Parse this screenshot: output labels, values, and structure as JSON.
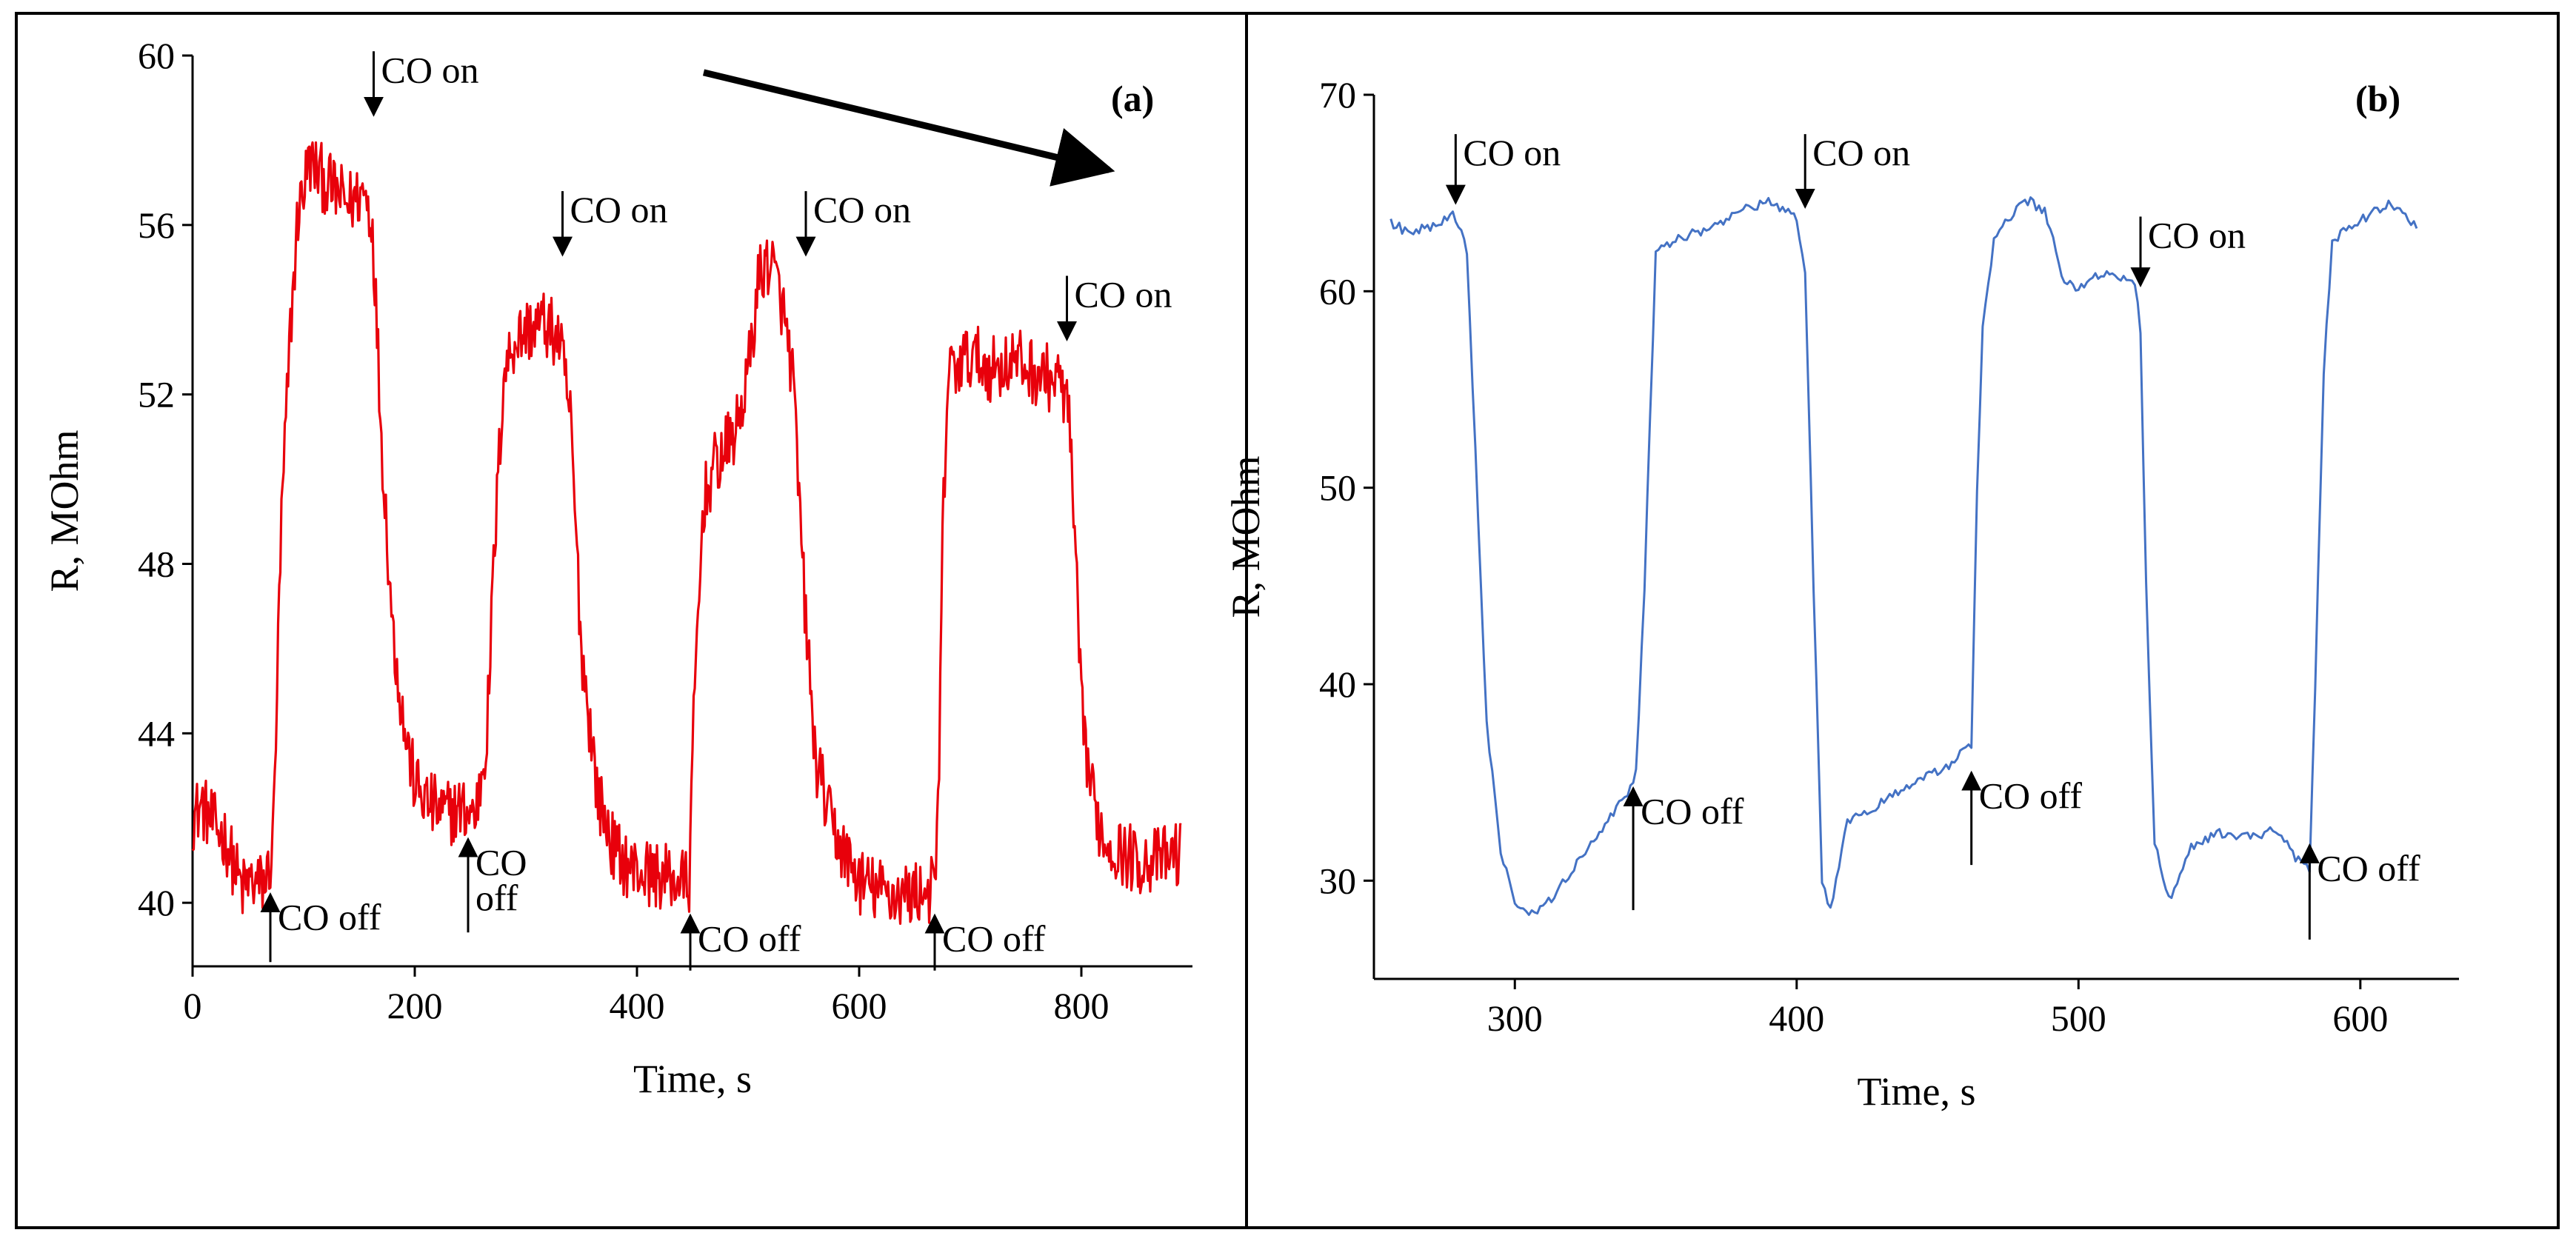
{
  "chart_data": [
    {
      "panel": "(a)",
      "type": "line",
      "xlabel": "Time, s",
      "ylabel": "R, MOhm",
      "xlim": [
        0,
        900
      ],
      "ylim": [
        38.5,
        60
      ],
      "xticks": [
        0,
        200,
        400,
        600,
        800
      ],
      "yticks": [
        40,
        44,
        48,
        52,
        56,
        60
      ],
      "color": "#e8000b",
      "noise_amplitude": 0.8,
      "trend_arrow": {
        "from": [
          460,
          59.6
        ],
        "to": [
          825,
          57.3
        ]
      },
      "series": [
        {
          "name": "R",
          "x": [
            0,
            8,
            20,
            30,
            38,
            45,
            52,
            60,
            66,
            72,
            75,
            80,
            88,
            95,
            105,
            120,
            140,
            155,
            162,
            170,
            180,
            190,
            200,
            210,
            225,
            240,
            255,
            265,
            272,
            280,
            290,
            300,
            315,
            330,
            340,
            350,
            365,
            380,
            395,
            410,
            425,
            440,
            447,
            452,
            460,
            470,
            480,
            490,
            500,
            510,
            520,
            530,
            540,
            550,
            560,
            575,
            590,
            600,
            615,
            630,
            645,
            660,
            668,
            672,
            675,
            680,
            700,
            720,
            740,
            760,
            780,
            788,
            795,
            800,
            810,
            820,
            835,
            850,
            870,
            890
          ],
          "y": [
            42,
            42.3,
            41.8,
            41.5,
            40.8,
            40.3,
            40.5,
            40.4,
            40.5,
            41.2,
            44,
            49,
            53.5,
            56.3,
            57.5,
            57,
            56.5,
            56.8,
            56,
            51,
            46.5,
            44.2,
            42.8,
            42.4,
            42.1,
            42.2,
            42.1,
            44,
            48.5,
            52.5,
            53.3,
            53.5,
            53.7,
            53.3,
            51.5,
            46,
            42.5,
            41.2,
            40.8,
            40.7,
            40.6,
            40.5,
            40.5,
            45,
            49.5,
            50.3,
            50.7,
            51.2,
            52.5,
            54.8,
            55.2,
            54.2,
            52.5,
            47.5,
            43.5,
            41.8,
            41,
            40.5,
            40.3,
            40.2,
            40.2,
            40.3,
            40.3,
            43,
            48.5,
            52.5,
            52.9,
            52.6,
            52.8,
            52.5,
            52.3,
            51.8,
            48,
            44.5,
            42.5,
            41.5,
            41.2,
            41,
            41,
            41.2
          ]
        }
      ],
      "annotations": [
        {
          "text": "CO on",
          "dir": "down",
          "x": 163,
          "y_tip": 58.6,
          "y_tail": 60.1
        },
        {
          "text": "CO on",
          "dir": "down",
          "x": 333,
          "y_tip": 55.3,
          "y_tail": 56.8
        },
        {
          "text": "CO on",
          "dir": "down",
          "x": 552,
          "y_tip": 55.3,
          "y_tail": 56.8
        },
        {
          "text": "CO on",
          "dir": "down",
          "x": 787,
          "y_tip": 53.3,
          "y_tail": 54.8
        },
        {
          "text": "CO off",
          "dir": "up",
          "x": 70,
          "y_tip": 40.2,
          "y_tail": 38.6
        },
        {
          "text": "CO",
          "text2": "off",
          "dir": "up",
          "x": 248,
          "y_tip": 41.5,
          "y_tail": 39.3
        },
        {
          "text": "CO off",
          "dir": "up",
          "x": 448,
          "y_tip": 39.7,
          "y_tail": 38.4
        },
        {
          "text": "CO off",
          "dir": "up",
          "x": 668,
          "y_tip": 39.7,
          "y_tail": 38.4
        }
      ]
    },
    {
      "panel": "(b)",
      "type": "line",
      "xlabel": "Time, s",
      "ylabel": "R, MOhm",
      "xlim": [
        250,
        635
      ],
      "ylim": [
        25,
        70
      ],
      "xticks": [
        300,
        400,
        500,
        600
      ],
      "yticks": [
        30,
        40,
        50,
        60,
        70
      ],
      "color": "#4472c4",
      "noise_amplitude": 0.25,
      "series": [
        {
          "name": "R",
          "x": [
            256,
            262,
            268,
            274,
            278,
            280,
            283,
            286,
            290,
            295,
            300,
            305,
            310,
            320,
            330,
            340,
            343,
            346,
            350,
            360,
            370,
            380,
            390,
            400,
            403,
            406,
            409,
            412,
            418,
            425,
            440,
            455,
            462,
            464,
            466,
            470,
            478,
            483,
            488,
            495,
            500,
            510,
            520,
            522,
            524,
            527,
            532,
            540,
            550,
            560,
            570,
            578,
            582,
            584,
            587,
            590,
            595,
            600,
            610,
            620
          ],
          "y": [
            63.5,
            63,
            63.2,
            63.4,
            64,
            63.5,
            62,
            52,
            38,
            31.5,
            29,
            28.3,
            28.5,
            30.5,
            32.5,
            34.5,
            35.5,
            45,
            62,
            62.8,
            63.2,
            64.2,
            64.5,
            63.8,
            61,
            45,
            30,
            28.5,
            33,
            33.5,
            34.8,
            36,
            37,
            50,
            58,
            62.5,
            64.3,
            64.6,
            64,
            60.5,
            60.2,
            61,
            60.5,
            58,
            45,
            32,
            29,
            31.8,
            32.4,
            32.2,
            32.6,
            31,
            30.5,
            40,
            56,
            62.5,
            63.2,
            63.6,
            64.5,
            63.2
          ]
        }
      ],
      "annotations": [
        {
          "text": "CO on",
          "dir": "down",
          "x": 279,
          "y_tip": 64.5,
          "y_tail": 68
        },
        {
          "text": "CO on",
          "dir": "down",
          "x": 403,
          "y_tip": 64.3,
          "y_tail": 68
        },
        {
          "text": "CO on",
          "dir": "down",
          "x": 522,
          "y_tip": 60.3,
          "y_tail": 63.8
        },
        {
          "text": "CO off",
          "dir": "up",
          "x": 342,
          "y_tip": 34.7,
          "y_tail": 28.5
        },
        {
          "text": "CO off",
          "dir": "up",
          "x": 462,
          "y_tip": 35.5,
          "y_tail": 30.8
        },
        {
          "text": "CO off",
          "dir": "up",
          "x": 582,
          "y_tip": 31.8,
          "y_tail": 27
        }
      ]
    }
  ]
}
